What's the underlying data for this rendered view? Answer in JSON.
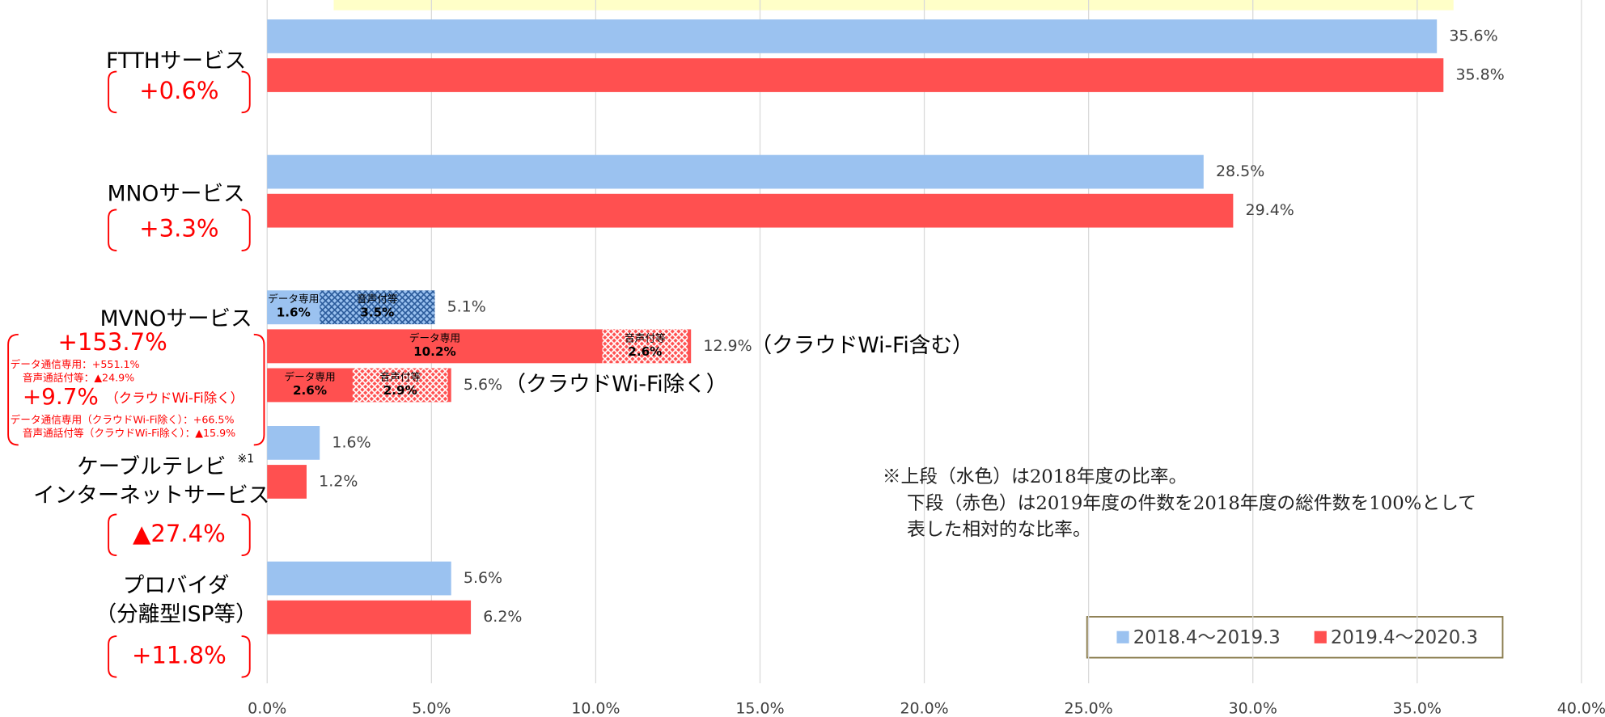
{
  "chart_data": {
    "type": "bar",
    "orientation": "horizontal",
    "categories": [
      [
        "FTTHサービス"
      ],
      [
        "MNOサービス"
      ],
      [
        "MVNOサービス"
      ],
      [
        "ケーブルテレビ",
        "インターネットサービス"
      ],
      [
        "プロバイダ",
        "（分離型ISP等）"
      ]
    ],
    "category_footnote": {
      "category": 3,
      "marker": "※1"
    },
    "category_changes": [
      "+0.6%",
      "+3.3%",
      "+153.7%",
      "▲27.4%",
      "+11.8%"
    ],
    "series": [
      {
        "name": "2018.4〜2019.3",
        "color": "#9bc2f0",
        "values": [
          35.6,
          28.5,
          5.1,
          1.6,
          5.6
        ],
        "value_labels": [
          "35.6%",
          "28.5%",
          "5.1%",
          "1.6%",
          "5.6%"
        ]
      },
      {
        "name": "2019.4〜2020.3",
        "color": "#ff5050",
        "values": [
          35.8,
          29.4,
          12.9,
          1.2,
          6.2
        ],
        "value_labels": [
          "35.8%",
          "29.4%",
          "12.9%",
          "1.2%",
          "6.2%"
        ]
      }
    ],
    "breakdown": [
      {
        "segments": [
          {
            "name": "データ専用",
            "value": 1.6,
            "label": "1.6%"
          },
          {
            "name": "音声付等",
            "value": 3.5,
            "label": "3.5%"
          }
        ]
      },
      {
        "note": "（クラウドWi-Fi含む）",
        "segments": [
          {
            "name": "データ専用",
            "value": 10.2,
            "label": "10.2%"
          },
          {
            "name": "音声付等",
            "value": 2.6,
            "label": "2.6%"
          }
        ]
      },
      {
        "value": 5.6,
        "value_label": "5.6%",
        "note": "（クラウドWi-Fi除く）",
        "segments": [
          {
            "name": "データ専用",
            "value": 2.6,
            "label": "2.6%"
          },
          {
            "name": "音声付等",
            "value": 2.9,
            "label": "2.9%"
          }
        ]
      }
    ],
    "mvno_details": {
      "lines_1": [
        "データ通信専用：+551.1%",
        "音声通話付等：▲24.9%"
      ],
      "change_2": "+9.7%",
      "change_2_note": "（クラウドWi-Fi除く）",
      "lines_2": [
        "データ通信専用（クラウドWi-Fi除く）：+66.5%",
        "音声通話付等（クラウドWi-Fi除く）：▲15.9%"
      ]
    },
    "note": [
      "※上段（水色）は2018年度の比率。",
      "下段（赤色）は2019年度の件数を2018年度の総件数を100%として",
      "表した相対的な比率。"
    ],
    "xlim": [
      0,
      40
    ],
    "xticks": [
      {
        "value": 0,
        "label": "0.0%"
      },
      {
        "value": 5,
        "label": "5.0%"
      },
      {
        "value": 10,
        "label": "10.0%"
      },
      {
        "value": 15,
        "label": "15.0%"
      },
      {
        "value": 20,
        "label": "20.0%"
      },
      {
        "value": 25,
        "label": "25.0%"
      },
      {
        "value": 30,
        "label": "30.0%"
      },
      {
        "value": 35,
        "label": "35.0%"
      },
      {
        "value": 40,
        "label": "40.0%"
      }
    ],
    "grid": true,
    "legend": "bottom-right"
  }
}
